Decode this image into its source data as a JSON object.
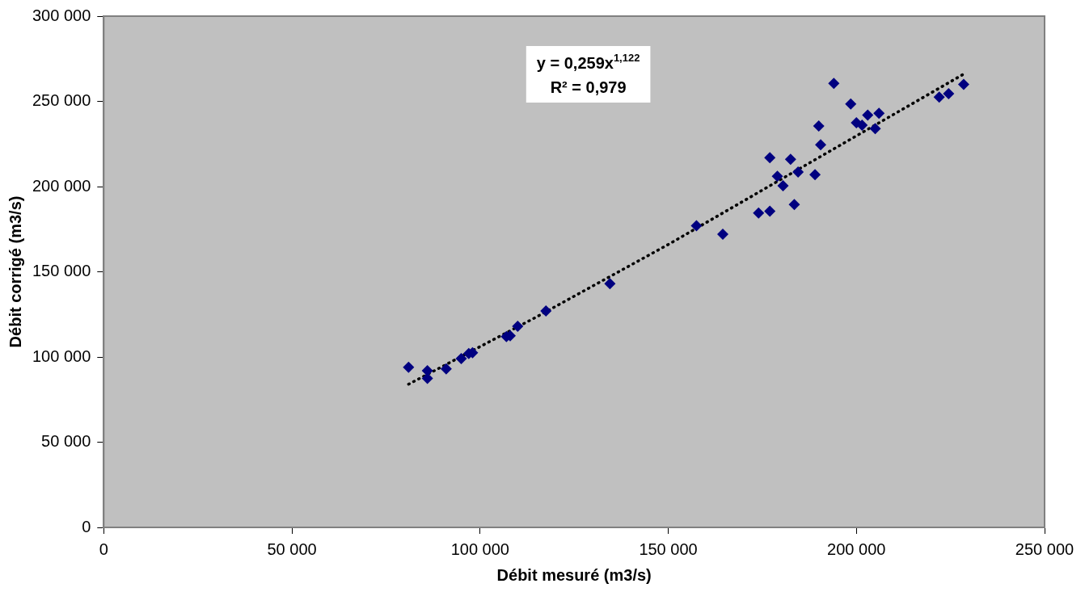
{
  "chart_data": {
    "type": "scatter",
    "xlabel": "Débit mesuré (m3/s)",
    "ylabel": "Débit corrigé (m3/s)",
    "annotations": [
      "y = 0,259x$^{1,122}$",
      "R² = 0,979"
    ],
    "xlim": [
      0,
      250000
    ],
    "ylim": [
      0,
      300000
    ],
    "xticks": [
      0,
      {
        "value": 50000,
        "label": "50 000"
      },
      {
        "value": 100000,
        "label": "100 000"
      },
      {
        "value": 150000,
        "label": "150 000"
      },
      {
        "value": 200000,
        "label": "200 000"
      },
      {
        "value": 250000,
        "label": "250 000"
      }
    ],
    "yticks": [
      0,
      {
        "value": 50000,
        "label": "50 000"
      },
      {
        "value": 100000,
        "label": "100 000"
      },
      {
        "value": 150000,
        "label": "150 000"
      },
      {
        "value": 200000,
        "label": "200 000"
      },
      {
        "value": 250000,
        "label": "250 000"
      },
      {
        "value": 300000,
        "label": "300 000"
      }
    ],
    "grid": false,
    "legend": false,
    "marker": "diamond",
    "series": [
      {
        "color": "#000080",
        "x": [
          81000,
          86000,
          86000,
          91000,
          95000,
          97000,
          98000,
          107000,
          108000,
          110000,
          117500,
          134500,
          157500,
          164500,
          174000,
          177000,
          177000,
          179000,
          180500,
          182500,
          183500,
          184500,
          189000,
          190000,
          190500,
          194000,
          198500,
          200000,
          201500,
          203000,
          205000,
          206000,
          222000,
          224500,
          228500
        ],
        "values": [
          94000,
          87500,
          92000,
          93000,
          99000,
          102000,
          102500,
          112000,
          112500,
          118000,
          127000,
          143000,
          177000,
          172000,
          184500,
          185500,
          217000,
          206000,
          200500,
          216000,
          189500,
          208500,
          207000,
          235500,
          224500,
          260500,
          248500,
          237500,
          236000,
          242000,
          234000,
          243000,
          252500,
          254500,
          260000
        ]
      },
      {
        "type": "line",
        "color": "#000000",
        "line_style": "dotted",
        "marker": "none",
        "x": [
          81000,
          115000,
          150000,
          190000,
          228500
        ],
        "values": [
          84000,
          123500,
          166000,
          217000,
          266000
        ]
      }
    ]
  }
}
